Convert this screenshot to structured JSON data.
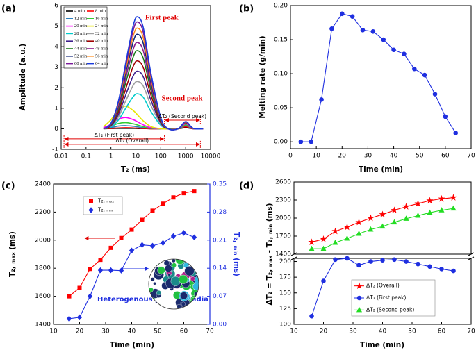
{
  "chart_data": [
    {
      "type": "line",
      "panel_label": "(a)",
      "xlabel": "T₂ (ms)",
      "ylabel": "Amplitude (a.u.)",
      "xlog": true,
      "xlim": [
        0.01,
        10000
      ],
      "xticks": [
        0.01,
        0.1,
        1,
        10,
        100,
        1000,
        10000
      ],
      "ylim": [
        -1,
        6
      ],
      "yticks": [
        -1,
        0,
        1,
        2,
        3,
        4,
        5,
        6
      ],
      "legend": "upper left",
      "x": [
        0.5,
        1,
        2,
        4,
        8,
        12,
        20,
        40,
        100,
        200,
        500,
        1000,
        2000,
        5000
      ],
      "series": [
        {
          "name": "4 min",
          "color": "#000000",
          "values": [
            0,
            0.01,
            0.02,
            0.02,
            0.02,
            0.01,
            0.01,
            0,
            0,
            0,
            0,
            0.05,
            0,
            0
          ]
        },
        {
          "name": "8 min",
          "color": "#ff0000",
          "values": [
            0.01,
            0.02,
            0.04,
            0.05,
            0.04,
            0.03,
            0.02,
            0,
            0,
            0,
            0,
            0.1,
            0,
            0
          ]
        },
        {
          "name": "12 min",
          "color": "#2a7fbf",
          "values": [
            0.02,
            0.06,
            0.13,
            0.15,
            0.12,
            0.09,
            0.05,
            0.02,
            0,
            0,
            0,
            0.15,
            0.01,
            0
          ]
        },
        {
          "name": "16 min",
          "color": "#33cc33",
          "values": [
            0.03,
            0.12,
            0.26,
            0.3,
            0.24,
            0.18,
            0.1,
            0.03,
            0,
            0,
            0,
            0.2,
            0.01,
            0
          ]
        },
        {
          "name": "20 min",
          "color": "#ff00ff",
          "values": [
            0.05,
            0.22,
            0.47,
            0.55,
            0.44,
            0.33,
            0.19,
            0.05,
            0,
            0,
            0,
            0.25,
            0.01,
            0
          ]
        },
        {
          "name": "24 min",
          "color": "#e6e600",
          "values": [
            0.1,
            0.44,
            0.94,
            1.1,
            0.88,
            0.66,
            0.38,
            0.11,
            0,
            0,
            0,
            0.3,
            0.02,
            0
          ]
        },
        {
          "name": "28 min",
          "color": "#00cccc",
          "values": [
            0,
            0.09,
            0.43,
            1.02,
            1.58,
            1.7,
            1.53,
            0.85,
            0.17,
            0,
            0,
            0.3,
            0.02,
            0
          ]
        },
        {
          "name": "32 min",
          "color": "#9e9e9e",
          "values": [
            0,
            0.12,
            0.58,
            1.38,
            2.14,
            2.3,
            2.07,
            1.15,
            0.23,
            0,
            0,
            0.3,
            0.02,
            0
          ]
        },
        {
          "name": "36 min",
          "color": "#3d1e8c",
          "values": [
            0,
            0.14,
            0.7,
            1.68,
            2.6,
            2.8,
            2.52,
            1.4,
            0.28,
            0,
            0,
            0.3,
            0.02,
            0
          ]
        },
        {
          "name": "40 min",
          "color": "#a00000",
          "values": [
            0,
            0.17,
            0.83,
            1.98,
            3.07,
            3.3,
            2.97,
            1.65,
            0.33,
            0,
            0,
            0.3,
            0.02,
            0
          ]
        },
        {
          "name": "44 min",
          "color": "#1a7a1a",
          "values": [
            0,
            0.19,
            0.95,
            2.28,
            3.53,
            3.8,
            3.42,
            1.9,
            0.38,
            0,
            0,
            0.32,
            0.02,
            0
          ]
        },
        {
          "name": "48 min",
          "color": "#8a1a8a",
          "values": [
            0,
            0.21,
            1.05,
            2.52,
            3.91,
            4.2,
            3.78,
            2.1,
            0.42,
            0,
            0,
            0.32,
            0.02,
            0
          ]
        },
        {
          "name": "52 min",
          "color": "#14287a",
          "values": [
            0,
            0.23,
            1.15,
            2.76,
            4.28,
            4.6,
            4.14,
            2.3,
            0.46,
            0,
            0,
            0.33,
            0.02,
            0
          ]
        },
        {
          "name": "56 min",
          "color": "#ff8c1a",
          "values": [
            0,
            0.25,
            1.23,
            2.94,
            4.56,
            4.9,
            4.41,
            2.45,
            0.49,
            0,
            0,
            0.33,
            0.02,
            0
          ]
        },
        {
          "name": "60 min",
          "color": "#7a1a9a",
          "values": [
            0,
            0.26,
            1.3,
            3.12,
            4.84,
            5.2,
            4.68,
            2.6,
            0.52,
            0,
            0,
            0.34,
            0.02,
            0
          ]
        },
        {
          "name": "64 min",
          "color": "#1a3adc",
          "values": [
            0,
            0.27,
            1.36,
            3.27,
            5.07,
            5.45,
            4.91,
            2.73,
            0.55,
            0,
            0,
            0.35,
            0.02,
            0
          ]
        }
      ],
      "annotations": [
        {
          "text": "First peak",
          "x": 110,
          "y": 5.4,
          "color": "#e00000"
        },
        {
          "text": "Second peak",
          "x": 720,
          "y": 1.47,
          "color": "#e00000"
        }
      ],
      "ranges": [
        {
          "text": "ΔT₂ (Second peak)",
          "x": [
            140,
            3900
          ],
          "y": 0.42
        },
        {
          "text": "ΔT₂ (First peak)",
          "x": [
            0.013,
            140
          ],
          "y": -0.49
        },
        {
          "text": "ΔT₂ (Overall)",
          "x": [
            0.013,
            3900
          ],
          "y": -0.76
        }
      ]
    },
    {
      "type": "line",
      "panel_label": "(b)",
      "xlabel": "Time (min)",
      "ylabel": "Melting rate (g/min)",
      "xlim": [
        0,
        70
      ],
      "xticks": [
        0,
        10,
        20,
        30,
        40,
        50,
        60,
        70
      ],
      "ylim": [
        -0.01,
        0.2
      ],
      "yticks": [
        {
          "value": 0,
          "label": "0.00"
        },
        {
          "value": 0.05,
          "label": "0.05"
        },
        {
          "value": 0.1,
          "label": "0.10"
        },
        {
          "value": 0.15,
          "label": "0.15"
        },
        {
          "value": 0.2,
          "label": "0.20"
        }
      ],
      "x": [
        4,
        8,
        12,
        16,
        20,
        24,
        28,
        32,
        36,
        40,
        44,
        48,
        52,
        56,
        60,
        64
      ],
      "values": [
        0,
        0,
        0.062,
        0.166,
        0.188,
        0.184,
        0.164,
        0.162,
        0.15,
        0.135,
        0.129,
        0.107,
        0.098,
        0.07,
        0.037,
        0.013
      ],
      "color": "#1f2fe0",
      "marker": "circle"
    },
    {
      "type": "line",
      "panel_label": "(c)",
      "xlabel": "Time (min)",
      "ylabel": "T₂, ₘₐₓ (ms)",
      "y2label": "T₂, ₘᵢₙ (ms)",
      "y2color": "#1f2fe0",
      "note": "Heterogenous porous media",
      "xlim": [
        10,
        70
      ],
      "xticks": [
        10,
        20,
        30,
        40,
        50,
        60,
        70
      ],
      "ylim": [
        1400,
        2400
      ],
      "yticks": [
        1400,
        1600,
        1800,
        2000,
        2200,
        2400
      ],
      "y2lim": [
        0,
        0.35
      ],
      "y2ticks": [
        {
          "value": 0,
          "label": "0.00"
        },
        0.07,
        0.14,
        0.21,
        0.28,
        0.35
      ],
      "legend": "upper left",
      "x": [
        16,
        20,
        24,
        28,
        32,
        36,
        40,
        44,
        48,
        52,
        56,
        60,
        64
      ],
      "series": [
        {
          "name": "T₂, ₘₐₓ",
          "color": "#ff0000",
          "marker": "square",
          "values": [
            1600,
            1660,
            1795,
            1860,
            1945,
            2015,
            2075,
            2145,
            2210,
            2260,
            2305,
            2335,
            2350
          ]
        },
        {
          "name": "T₂, ₘᵢₙ",
          "color": "#1f2fe0",
          "marker": "diamond",
          "axis": "y2",
          "values": [
            0.014,
            0.0175,
            0.07,
            0.135,
            0.135,
            0.134,
            0.184,
            0.198,
            0.196,
            0.203,
            0.22,
            0.228,
            0.217
          ]
        }
      ]
    },
    {
      "type": "line",
      "panel_label": "(d)",
      "xlabel": "Time (min)",
      "ylabel": "ΔT₂ = T₂, ₘₐₓ - T₂, ₘᵢₙ (ms)",
      "broken_axis": true,
      "xlim": [
        10,
        70
      ],
      "xticks": [
        10,
        20,
        30,
        40,
        50,
        60,
        70
      ],
      "ylim": [
        1400,
        2600
      ],
      "yticks": [
        1400,
        1700,
        2000,
        2300,
        2600
      ],
      "y2lim": [
        100,
        205
      ],
      "y2ticks": [
        100,
        125,
        150,
        175,
        200
      ],
      "legend": "lower center",
      "x": [
        16,
        20,
        24,
        28,
        32,
        36,
        40,
        44,
        48,
        52,
        56,
        60,
        64
      ],
      "series": [
        {
          "name": "ΔT₂ (Overall)",
          "color": "#ff0000",
          "marker": "star",
          "values": [
            1600,
            1650,
            1780,
            1850,
            1930,
            2000,
            2060,
            2130,
            2190,
            2240,
            2290,
            2320,
            2340
          ]
        },
        {
          "name": "ΔT₂ (First peak)",
          "color": "#1f2fe0",
          "marker": "circle",
          "axis": "y2",
          "values": [
            113,
            169,
            203,
            205,
            194,
            200,
            202,
            203,
            200,
            196,
            192,
            188,
            185
          ]
        },
        {
          "name": "ΔT₂ (Second peak)",
          "color": "#22dd22",
          "marker": "triangle",
          "values": [
            1490,
            1490,
            1590,
            1660,
            1740,
            1810,
            1860,
            1930,
            1990,
            2040,
            2090,
            2130,
            2160
          ]
        }
      ]
    }
  ]
}
